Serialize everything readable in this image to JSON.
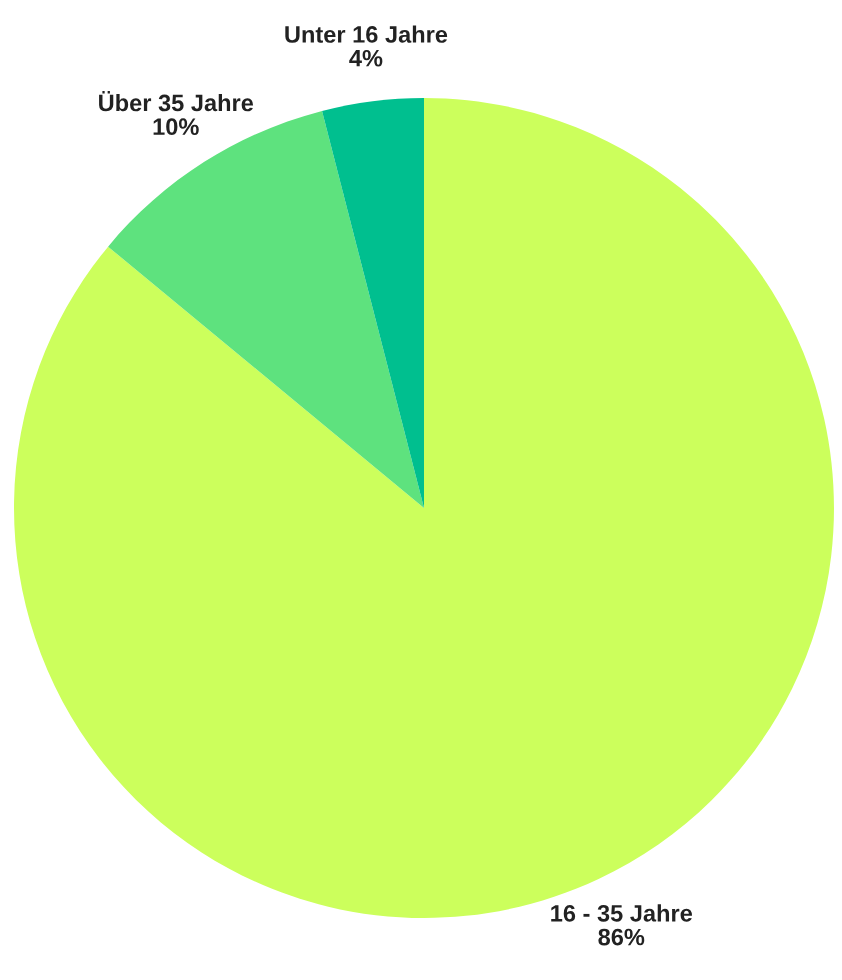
{
  "chart_data": {
    "type": "pie",
    "categories": [
      "16 - 35 Jahre",
      "Über 35 Jahre",
      "Unter 16 Jahre"
    ],
    "values": [
      86,
      10,
      4
    ],
    "colors": [
      "#ccff5c",
      "#5ee27e",
      "#00bf8f"
    ],
    "value_labels": [
      "86%",
      "10%",
      "4%"
    ]
  }
}
